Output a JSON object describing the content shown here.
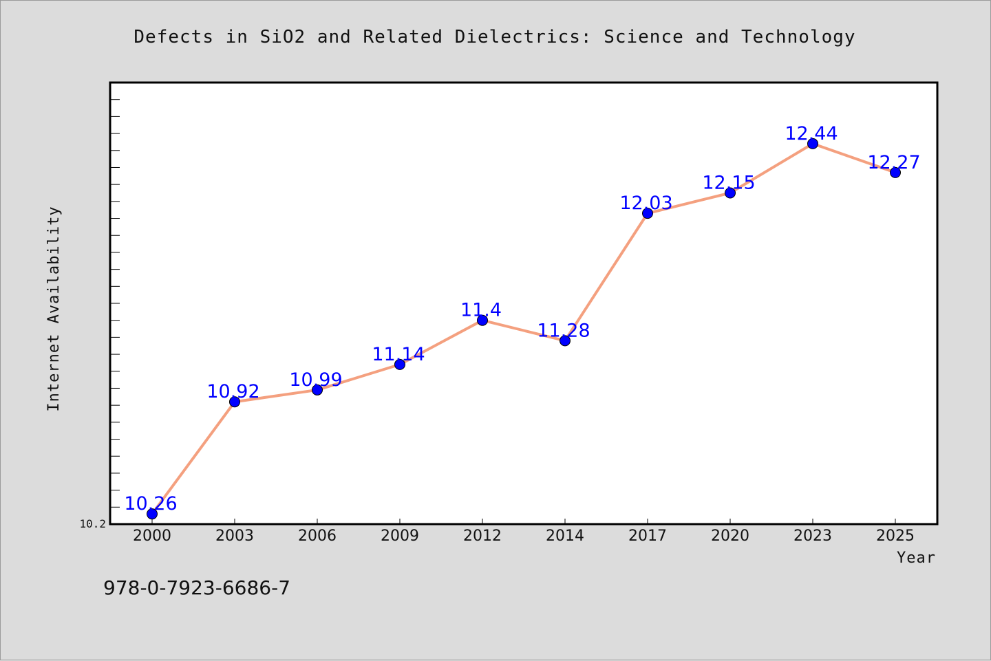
{
  "chart_data": {
    "type": "line",
    "title": "Defects in SiO2 and Related Dielectrics: Science and Technology",
    "xlabel": "Year",
    "ylabel": "Internet Availability",
    "categories": [
      "2000",
      "2003",
      "2006",
      "2009",
      "2012",
      "2014",
      "2017",
      "2020",
      "2023",
      "2025"
    ],
    "series": [
      {
        "values": [
          10.26,
          10.92,
          10.99,
          11.14,
          11.4,
          11.28,
          12.03,
          12.15,
          12.44,
          12.27
        ]
      }
    ],
    "data_labels": [
      "10.26",
      "10.92",
      "10.99",
      "11.14",
      "11.4",
      "11.28",
      "12.03",
      "12.15",
      "12.44",
      "12.27"
    ],
    "y_min_label": "10.2",
    "ylim": [
      10.2,
      12.8
    ],
    "grid": false,
    "line_color": "#f4a07f",
    "marker_color": "#0000ff",
    "label_color": "#0000ff"
  },
  "footer": {
    "isbn": "978-0-7923-6686-7"
  }
}
